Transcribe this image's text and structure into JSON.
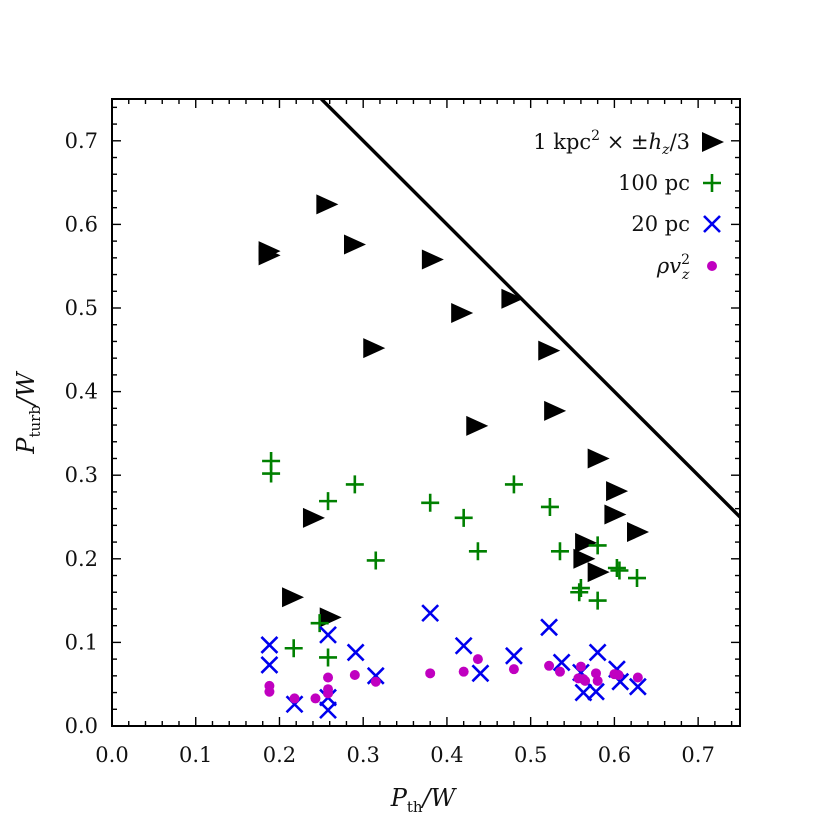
{
  "chart_data": {
    "type": "scatter",
    "xlabel": "P_th/W",
    "ylabel": "P_turb/W",
    "xlim": [
      0.0,
      0.75
    ],
    "ylim": [
      0.0,
      0.75
    ],
    "xticks": [
      "0.0",
      "0.1",
      "0.2",
      "0.3",
      "0.4",
      "0.5",
      "0.6",
      "0.7"
    ],
    "yticks": [
      "0.0",
      "0.1",
      "0.2",
      "0.3",
      "0.4",
      "0.5",
      "0.6",
      "0.7"
    ],
    "xtick_values": [
      0.0,
      0.1,
      0.2,
      0.3,
      0.4,
      0.5,
      0.6,
      0.7
    ],
    "ytick_values": [
      0.0,
      0.1,
      0.2,
      0.3,
      0.4,
      0.5,
      0.6,
      0.7
    ],
    "line": {
      "name": "P_th + P_turb = W",
      "x": [
        0.25,
        0.75
      ],
      "y": [
        0.75,
        0.25
      ],
      "color": "#000000"
    },
    "legend_position": "top-right",
    "series": [
      {
        "name": "1 kpc^2 × ±h_z/3",
        "marker": "triangle-right",
        "color": "#000000",
        "x": [
          0.187,
          0.187,
          0.256,
          0.289,
          0.382,
          0.417,
          0.477,
          0.312,
          0.521,
          0.528,
          0.435,
          0.58,
          0.602,
          0.6,
          0.627,
          0.565,
          0.563,
          0.58,
          0.24,
          0.215,
          0.26
        ],
        "y": [
          0.568,
          0.563,
          0.624,
          0.576,
          0.558,
          0.494,
          0.511,
          0.452,
          0.449,
          0.377,
          0.359,
          0.32,
          0.281,
          0.253,
          0.232,
          0.219,
          0.2,
          0.184,
          0.249,
          0.154,
          0.13
        ]
      },
      {
        "name": "100 pc",
        "marker": "plus",
        "color": "#008000",
        "x": [
          0.19,
          0.19,
          0.258,
          0.29,
          0.38,
          0.42,
          0.48,
          0.437,
          0.523,
          0.315,
          0.535,
          0.58,
          0.603,
          0.606,
          0.627,
          0.558,
          0.56,
          0.58,
          0.248,
          0.217,
          0.258
        ],
        "y": [
          0.317,
          0.302,
          0.269,
          0.289,
          0.267,
          0.249,
          0.289,
          0.209,
          0.262,
          0.198,
          0.209,
          0.216,
          0.189,
          0.186,
          0.177,
          0.16,
          0.165,
          0.15,
          0.123,
          0.093,
          0.082
        ]
      },
      {
        "name": "20 pc",
        "marker": "x",
        "color": "#0000ee",
        "x": [
          0.188,
          0.188,
          0.258,
          0.291,
          0.38,
          0.42,
          0.48,
          0.44,
          0.522,
          0.315,
          0.537,
          0.58,
          0.603,
          0.607,
          0.628,
          0.56,
          0.563,
          0.578,
          0.258,
          0.218,
          0.258
        ],
        "y": [
          0.097,
          0.073,
          0.109,
          0.088,
          0.135,
          0.096,
          0.084,
          0.063,
          0.118,
          0.06,
          0.076,
          0.088,
          0.068,
          0.053,
          0.047,
          0.064,
          0.04,
          0.041,
          0.034,
          0.026,
          0.019
        ]
      },
      {
        "name": "ρv_z^2",
        "marker": "circle",
        "color": "#c000c0",
        "x": [
          0.188,
          0.188,
          0.218,
          0.243,
          0.258,
          0.258,
          0.258,
          0.29,
          0.315,
          0.38,
          0.42,
          0.437,
          0.48,
          0.522,
          0.535,
          0.557,
          0.56,
          0.563,
          0.565,
          0.578,
          0.58,
          0.6,
          0.605,
          0.628
        ],
        "y": [
          0.048,
          0.041,
          0.033,
          0.033,
          0.058,
          0.044,
          0.039,
          0.061,
          0.053,
          0.063,
          0.065,
          0.08,
          0.068,
          0.072,
          0.065,
          0.057,
          0.071,
          0.056,
          0.054,
          0.063,
          0.054,
          0.062,
          0.061,
          0.058
        ]
      }
    ]
  }
}
